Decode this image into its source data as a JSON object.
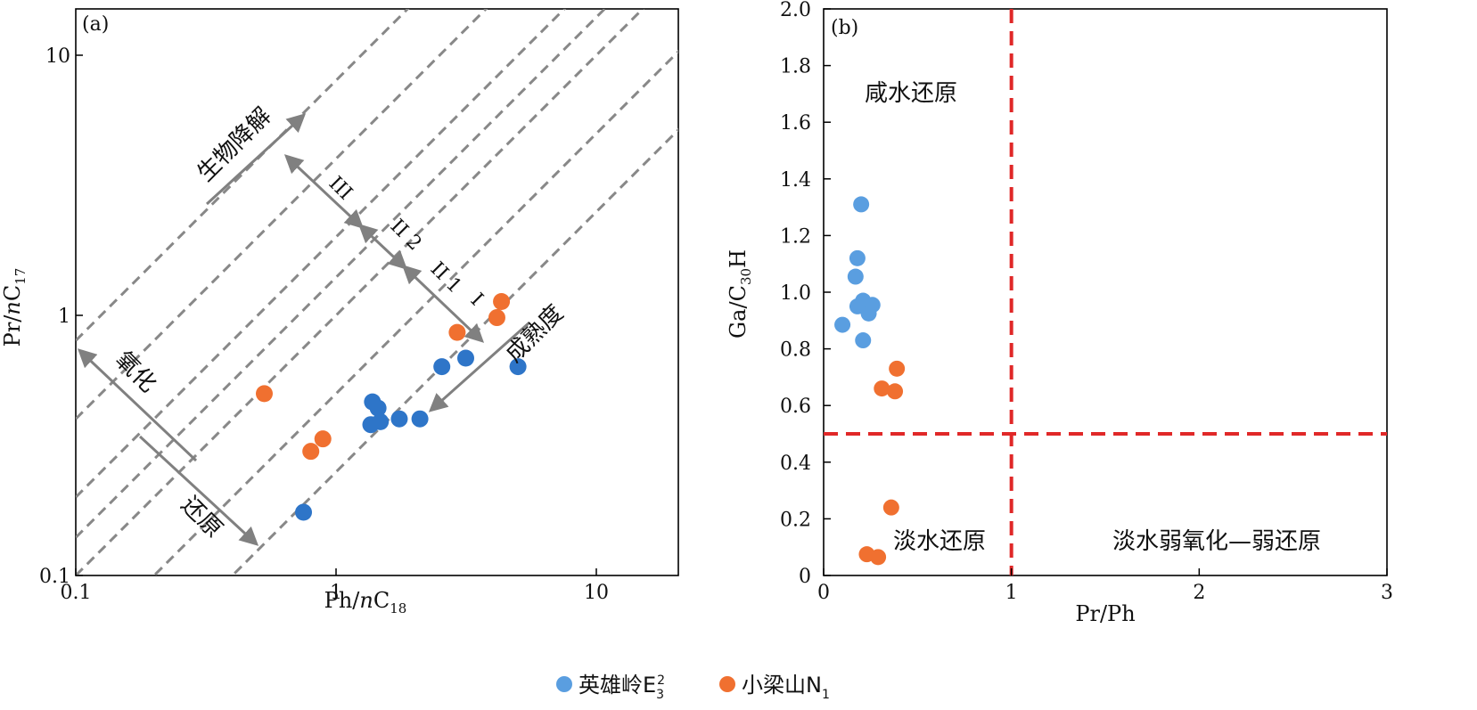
{
  "chart_data": [
    {
      "type": "scatter",
      "panel_label": "(a)",
      "x_scale": "log",
      "y_scale": "log",
      "xlim": [
        0.1,
        20
      ],
      "ylim": [
        0.1,
        19
      ],
      "xlabel": {
        "main": "Ph/",
        "italic": "n",
        "rest": "C",
        "sub": "18"
      },
      "ylabel": {
        "main": "Pr/",
        "italic": "n",
        "rest": "C",
        "sub": "17"
      },
      "x_ticks": [
        {
          "value": 0.1,
          "label": "0.1"
        },
        {
          "value": 1,
          "label": "1"
        },
        {
          "value": 10,
          "label": "10"
        }
      ],
      "y_ticks": [
        {
          "value": 0.1,
          "label": "0.1"
        },
        {
          "value": 1,
          "label": "1"
        },
        {
          "value": 10,
          "label": "10"
        }
      ],
      "series": [
        {
          "series_ref": 0,
          "color": "#2e75c8",
          "points": [
            [
              0.75,
              0.175
            ],
            [
              1.38,
              0.465
            ],
            [
              1.45,
              0.44
            ],
            [
              1.36,
              0.38
            ],
            [
              1.48,
              0.39
            ],
            [
              1.75,
              0.4
            ],
            [
              2.1,
              0.4
            ],
            [
              2.55,
              0.635
            ],
            [
              3.15,
              0.685
            ],
            [
              5.0,
              0.635
            ]
          ]
        },
        {
          "series_ref": 1,
          "color": "#f07030",
          "points": [
            [
              0.53,
              0.5
            ],
            [
              0.8,
              0.3
            ],
            [
              0.89,
              0.335
            ],
            [
              2.92,
              0.86
            ],
            [
              4.15,
              0.98
            ],
            [
              4.32,
              1.13
            ]
          ]
        }
      ],
      "annotations": {
        "degradation": "生物降解",
        "oxidation": "氧化",
        "reduction": "还原",
        "maturity": "成熟度",
        "zone_III": "III",
        "zone_II2": "II 2",
        "zone_II1": "II 1",
        "zone_I": "I"
      }
    },
    {
      "type": "scatter",
      "panel_label": "(b)",
      "xlim": [
        0,
        3
      ],
      "ylim": [
        0,
        2
      ],
      "xlabel": {
        "main": "Pr/Ph"
      },
      "ylabel": {
        "main": "Ga/C",
        "sub": "30",
        "rest": "H"
      },
      "x_ticks": [
        {
          "value": 0,
          "label": "0"
        },
        {
          "value": 1,
          "label": "1"
        },
        {
          "value": 2,
          "label": "2"
        },
        {
          "value": 3,
          "label": "3"
        }
      ],
      "y_ticks": [
        {
          "value": 0,
          "label": "0"
        },
        {
          "value": 0.2,
          "label": "0.2"
        },
        {
          "value": 0.4,
          "label": "0.4"
        },
        {
          "value": 0.6,
          "label": "0.6"
        },
        {
          "value": 0.8,
          "label": "0.8"
        },
        {
          "value": 1.0,
          "label": "1.0"
        },
        {
          "value": 1.2,
          "label": "1.2"
        },
        {
          "value": 1.4,
          "label": "1.4"
        },
        {
          "value": 1.6,
          "label": "1.6"
        },
        {
          "value": 1.8,
          "label": "1.8"
        },
        {
          "value": 2.0,
          "label": "2.0"
        }
      ],
      "reference_lines": [
        {
          "orientation": "vertical",
          "value": 1,
          "color": "#e02828"
        },
        {
          "orientation": "horizontal",
          "value": 0.5,
          "color": "#e02828"
        }
      ],
      "series": [
        {
          "series_ref": 0,
          "color": "#5a9ee0",
          "points": [
            [
              0.2,
              1.31
            ],
            [
              0.18,
              1.12
            ],
            [
              0.17,
              1.055
            ],
            [
              0.21,
              0.97
            ],
            [
              0.26,
              0.955
            ],
            [
              0.18,
              0.95
            ],
            [
              0.24,
              0.925
            ],
            [
              0.1,
              0.885
            ],
            [
              0.21,
              0.83
            ]
          ]
        },
        {
          "series_ref": 1,
          "color": "#f07030",
          "points": [
            [
              0.39,
              0.73
            ],
            [
              0.31,
              0.66
            ],
            [
              0.38,
              0.65
            ],
            [
              0.36,
              0.24
            ],
            [
              0.23,
              0.075
            ],
            [
              0.29,
              0.065
            ]
          ]
        }
      ],
      "region_labels": {
        "saline_reducing": "咸水还原",
        "fresh_reducing": "淡水还原",
        "fresh_weak_ox": "淡水弱氧化—弱还原"
      }
    }
  ],
  "legend": [
    {
      "name_main": "英雄岭E",
      "sub": "3",
      "sup": "2",
      "color": "#5a9ee0"
    },
    {
      "name_main": "小梁山N",
      "sub": "1",
      "color": "#f07030"
    }
  ]
}
